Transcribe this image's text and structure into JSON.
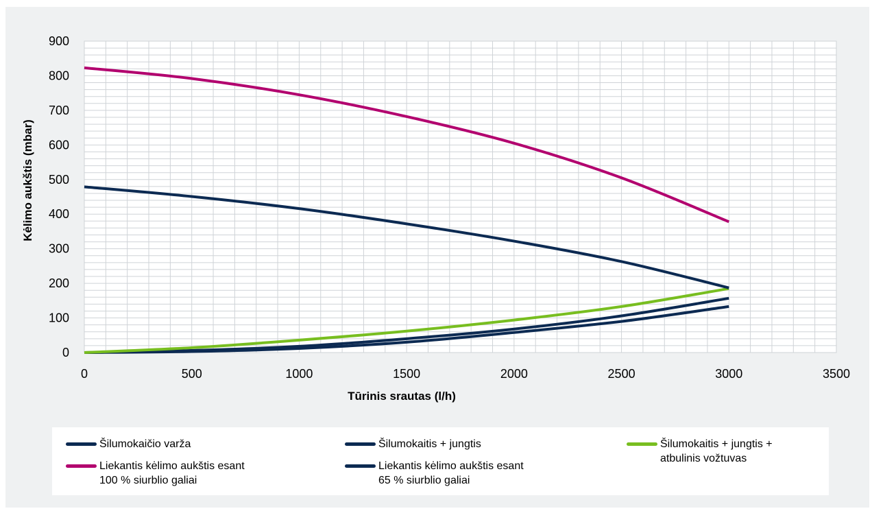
{
  "chart_data": {
    "type": "line",
    "title": "",
    "xlabel": "Tūrinis srautas (l/h)",
    "ylabel": "Kėlimo aukštis (mbar)",
    "xlim": [
      0,
      3500
    ],
    "ylim": [
      0,
      900
    ],
    "x_ticks": [
      0,
      500,
      1000,
      1500,
      2000,
      2500,
      3000,
      3500
    ],
    "y_ticks": [
      0,
      100,
      200,
      300,
      400,
      500,
      600,
      700,
      800,
      900
    ],
    "grid": true,
    "legend_position": "bottom",
    "series": [
      {
        "name": "Šilumokaičio varža",
        "color": "#0c2a52",
        "points": [
          [
            0,
            0
          ],
          [
            500,
            3
          ],
          [
            1000,
            12
          ],
          [
            1500,
            30
          ],
          [
            2000,
            58
          ],
          [
            2500,
            90
          ],
          [
            3000,
            133
          ]
        ]
      },
      {
        "name": "Šilumokaitis + jungtis",
        "color": "#0c2a52",
        "points": [
          [
            0,
            0
          ],
          [
            500,
            6
          ],
          [
            1000,
            18
          ],
          [
            1500,
            40
          ],
          [
            2000,
            68
          ],
          [
            2500,
            106
          ],
          [
            3000,
            157
          ]
        ]
      },
      {
        "name": "Šilumokaitis + jungtis + atbulinis vožtuvas",
        "color": "#78be20",
        "points": [
          [
            0,
            0
          ],
          [
            500,
            14
          ],
          [
            1000,
            36
          ],
          [
            1500,
            62
          ],
          [
            2000,
            94
          ],
          [
            2500,
            133
          ],
          [
            3000,
            185
          ]
        ]
      },
      {
        "name": "Liekantis kėlimo aukštis esant 100 % siurblio galiai",
        "color": "#b2006e",
        "points": [
          [
            0,
            823
          ],
          [
            500,
            792
          ],
          [
            1000,
            745
          ],
          [
            1500,
            682
          ],
          [
            2000,
            605
          ],
          [
            2500,
            505
          ],
          [
            3000,
            378
          ]
        ]
      },
      {
        "name": "Liekantis kėlimo aukštis esant 65 % siurblio galiai",
        "color": "#0c2a52",
        "points": [
          [
            0,
            479
          ],
          [
            500,
            451
          ],
          [
            1000,
            416
          ],
          [
            1500,
            372
          ],
          [
            2000,
            322
          ],
          [
            2500,
            263
          ],
          [
            3000,
            187
          ]
        ]
      }
    ]
  },
  "legend": {
    "items": [
      {
        "label": "Šilumokaičio varža",
        "color": "#0c2a52"
      },
      {
        "label": "Šilumokaitis + jungtis",
        "color": "#0c2a52"
      },
      {
        "label": "Šilumokaitis + jungtis +\natbulinis vožtuvas",
        "color": "#78be20"
      },
      {
        "label": "Liekantis kėlimo aukštis esant\n100 % siurblio galiai",
        "color": "#b2006e"
      },
      {
        "label": "Liekantis kėlimo aukštis esant\n65 % siurblio galiai",
        "color": "#0c2a52"
      }
    ]
  }
}
